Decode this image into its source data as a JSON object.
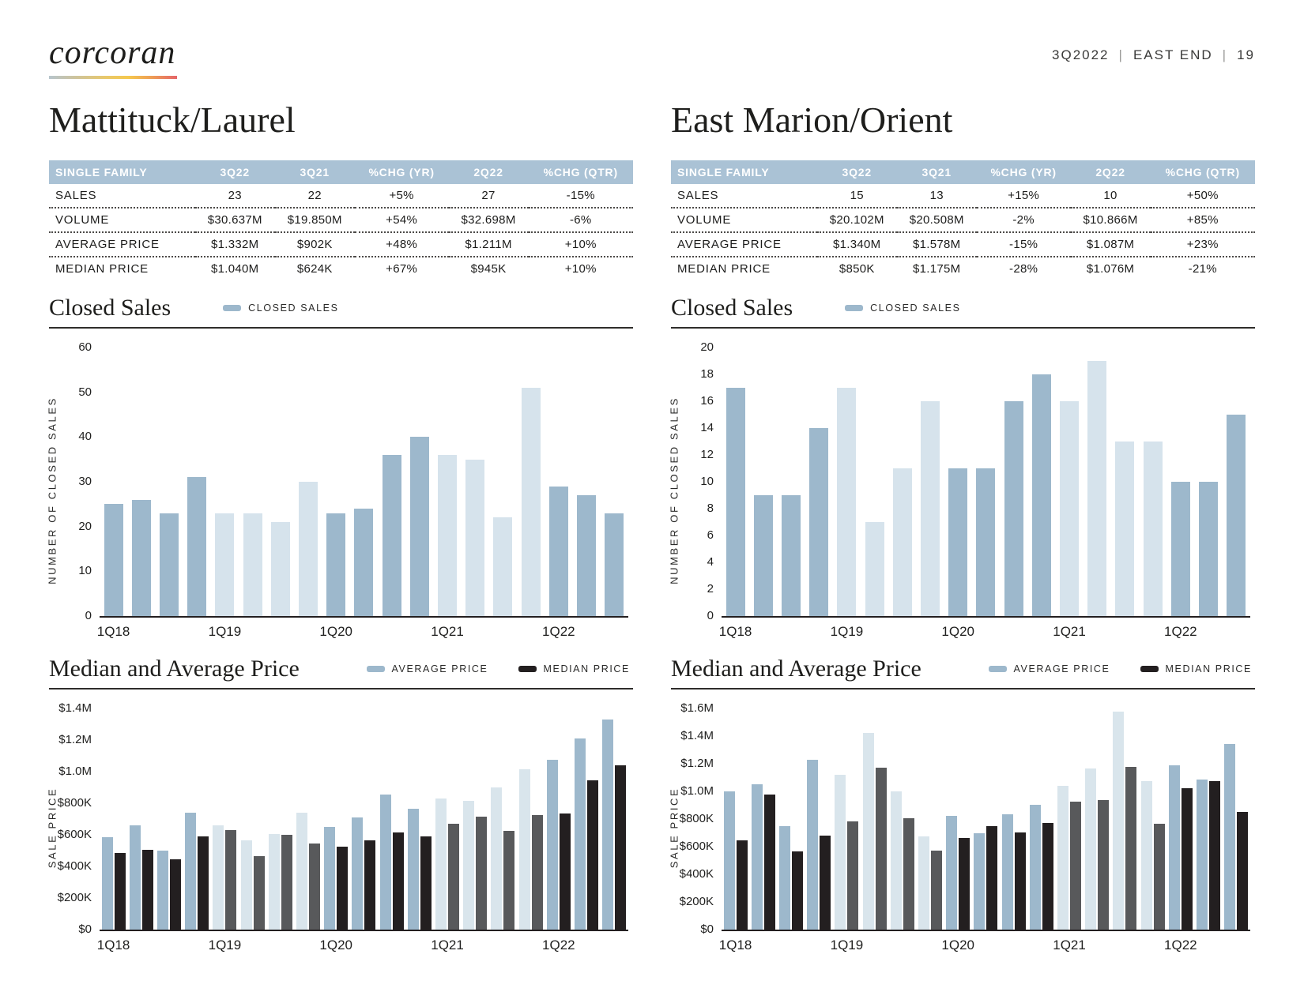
{
  "header": {
    "brand": "corcoran",
    "meta": {
      "quarter": "3Q2022",
      "region": "EAST END",
      "page_number": "19"
    }
  },
  "colors": {
    "bar_blue_medium": "#9db8cc",
    "bar_blue_light": "#d6e3ec",
    "bar_black": "#231f20",
    "bar_gray": "#58595b",
    "table_header_bg": "#aac2d5",
    "text_dark": "#231f20",
    "rule_dark": "#2f2d2b"
  },
  "sections": [
    {
      "title": "Mattituck/Laurel",
      "table": {
        "columns": [
          "SINGLE FAMILY",
          "3Q22",
          "3Q21",
          "%CHG (YR)",
          "2Q22",
          "%CHG (QTR)"
        ],
        "rows": [
          [
            "SALES",
            "23",
            "22",
            "+5%",
            "27",
            "-15%"
          ],
          [
            "VOLUME",
            "$30.637M",
            "$19.850M",
            "+54%",
            "$32.698M",
            "-6%"
          ],
          [
            "AVERAGE PRICE",
            "$1.332M",
            "$902K",
            "+48%",
            "$1.211M",
            "+10%"
          ],
          [
            "MEDIAN PRICE",
            "$1.040M",
            "$624K",
            "+67%",
            "$945K",
            "+10%"
          ]
        ]
      }
    },
    {
      "title": "East Marion/Orient",
      "table": {
        "columns": [
          "SINGLE FAMILY",
          "3Q22",
          "3Q21",
          "%CHG (YR)",
          "2Q22",
          "%CHG (QTR)"
        ],
        "rows": [
          [
            "SALES",
            "15",
            "13",
            "+15%",
            "10",
            "+50%"
          ],
          [
            "VOLUME",
            "$20.102M",
            "$20.508M",
            "-2%",
            "$10.866M",
            "+85%"
          ],
          [
            "AVERAGE PRICE",
            "$1.340M",
            "$1.578M",
            "-15%",
            "$1.087M",
            "+23%"
          ],
          [
            "MEDIAN PRICE",
            "$850K",
            "$1.175M",
            "-28%",
            "$1.076M",
            "-21%"
          ]
        ]
      }
    }
  ],
  "chart_data": [
    {
      "type": "bar",
      "section": "Mattituck/Laurel",
      "title": "Closed Sales",
      "legend": [
        "CLOSED SALES"
      ],
      "ylabel": "NUMBER OF CLOSED SALES",
      "categories": [
        "1Q18",
        "2Q18",
        "3Q18",
        "4Q18",
        "1Q19",
        "2Q19",
        "3Q19",
        "4Q19",
        "1Q20",
        "2Q20",
        "3Q20",
        "4Q20",
        "1Q21",
        "2Q21",
        "3Q21",
        "4Q21",
        "1Q22",
        "2Q22",
        "3Q22"
      ],
      "values": [
        25,
        26,
        23,
        31,
        23,
        23,
        21,
        30,
        23,
        24,
        36,
        40,
        36,
        35,
        22,
        51,
        29,
        27,
        23
      ],
      "ylim": [
        0,
        60
      ],
      "ytick_step": 10,
      "ytick_labels": [
        "0",
        "10",
        "20",
        "30",
        "40",
        "50",
        "60"
      ],
      "x_tick_every": 4,
      "x_tick_labels": [
        "1Q18",
        "1Q19",
        "1Q20",
        "1Q21",
        "1Q22"
      ],
      "grid": false,
      "legend_position": "top",
      "bar_colors": {
        "even_year": "#9db8cc",
        "odd_year": "#d6e3ec"
      }
    },
    {
      "type": "grouped-bar",
      "section": "Mattituck/Laurel",
      "title": "Median and Average Price",
      "ylabel": "SALE PRICE",
      "unit": "USD thousands",
      "categories": [
        "1Q18",
        "2Q18",
        "3Q18",
        "4Q18",
        "1Q19",
        "2Q19",
        "3Q19",
        "4Q19",
        "1Q20",
        "2Q20",
        "3Q20",
        "4Q20",
        "1Q21",
        "2Q21",
        "3Q21",
        "4Q21",
        "1Q22",
        "2Q22",
        "3Q22"
      ],
      "series": [
        {
          "name": "AVERAGE PRICE",
          "values": [
            585,
            660,
            500,
            740,
            660,
            565,
            605,
            740,
            650,
            710,
            855,
            765,
            830,
            815,
            902,
            1015,
            1075,
            1211,
            1332
          ],
          "colors": {
            "even_year": "#9db8cc",
            "odd_year": "#d9e5ec"
          }
        },
        {
          "name": "MEDIAN PRICE",
          "values": [
            485,
            505,
            445,
            590,
            630,
            465,
            600,
            545,
            525,
            565,
            615,
            590,
            670,
            715,
            624,
            725,
            735,
            945,
            1040
          ],
          "colors": {
            "even_year": "#231f20",
            "odd_year": "#58595b"
          }
        }
      ],
      "ylim": [
        0,
        1400
      ],
      "ytick_step": 200,
      "ytick_labels": [
        "$0",
        "$200K",
        "$400K",
        "$600K",
        "$800K",
        "$1.0M",
        "$1.2M",
        "$1.4M"
      ],
      "x_tick_every": 4,
      "x_tick_labels": [
        "1Q18",
        "1Q19",
        "1Q20",
        "1Q21",
        "1Q22"
      ],
      "grid": false,
      "legend_position": "top-right"
    },
    {
      "type": "bar",
      "section": "East Marion/Orient",
      "title": "Closed Sales",
      "legend": [
        "CLOSED SALES"
      ],
      "ylabel": "NUMBER OF CLOSED SALES",
      "categories": [
        "1Q18",
        "2Q18",
        "3Q18",
        "4Q18",
        "1Q19",
        "2Q19",
        "3Q19",
        "4Q19",
        "1Q20",
        "2Q20",
        "3Q20",
        "4Q20",
        "1Q21",
        "2Q21",
        "3Q21",
        "4Q21",
        "1Q22",
        "2Q22",
        "3Q22"
      ],
      "values": [
        17,
        9,
        9,
        14,
        17,
        7,
        11,
        16,
        11,
        11,
        16,
        18,
        16,
        19,
        13,
        13,
        10,
        10,
        15
      ],
      "ylim": [
        0,
        20
      ],
      "ytick_step": 2,
      "ytick_labels": [
        "0",
        "2",
        "4",
        "6",
        "8",
        "10",
        "12",
        "14",
        "16",
        "18",
        "20"
      ],
      "x_tick_every": 4,
      "x_tick_labels": [
        "1Q18",
        "1Q19",
        "1Q20",
        "1Q21",
        "1Q22"
      ],
      "grid": false,
      "legend_position": "top",
      "bar_colors": {
        "even_year": "#9db8cc",
        "odd_year": "#d6e3ec"
      }
    },
    {
      "type": "grouped-bar",
      "section": "East Marion/Orient",
      "title": "Median and Average Price",
      "ylabel": "SALE PRICE",
      "unit": "USD thousands",
      "categories": [
        "1Q18",
        "2Q18",
        "3Q18",
        "4Q18",
        "1Q19",
        "2Q19",
        "3Q19",
        "4Q19",
        "1Q20",
        "2Q20",
        "3Q20",
        "4Q20",
        "1Q21",
        "2Q21",
        "3Q21",
        "4Q21",
        "1Q22",
        "2Q22",
        "3Q22"
      ],
      "series": [
        {
          "name": "AVERAGE PRICE",
          "values": [
            1000,
            1050,
            750,
            1230,
            1120,
            1420,
            1000,
            675,
            820,
            695,
            835,
            900,
            1040,
            1165,
            1578,
            1075,
            1190,
            1087,
            1340
          ],
          "colors": {
            "even_year": "#9db8cc",
            "odd_year": "#d9e5ec"
          }
        },
        {
          "name": "MEDIAN PRICE",
          "values": [
            645,
            975,
            565,
            680,
            785,
            1170,
            805,
            570,
            660,
            750,
            705,
            770,
            925,
            935,
            1175,
            765,
            1020,
            1076,
            850
          ],
          "colors": {
            "even_year": "#231f20",
            "odd_year": "#58595b"
          }
        }
      ],
      "ylim": [
        0,
        1600
      ],
      "ytick_step": 200,
      "ytick_labels": [
        "$0",
        "$200K",
        "$400K",
        "$600K",
        "$800K",
        "$1.0M",
        "$1.2M",
        "$1.4M",
        "$1.6M"
      ],
      "x_tick_every": 4,
      "x_tick_labels": [
        "1Q18",
        "1Q19",
        "1Q20",
        "1Q21",
        "1Q22"
      ],
      "grid": false,
      "legend_position": "top-right"
    }
  ]
}
